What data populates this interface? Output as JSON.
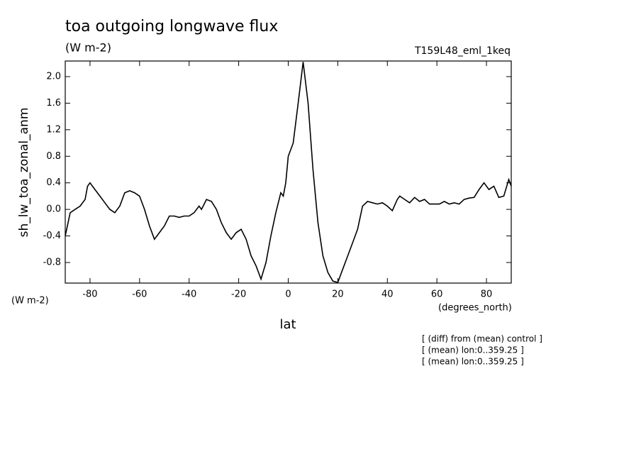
{
  "chart_data": {
    "type": "line",
    "title": "toa outgoing longwave flux",
    "subtitle": "(W m-2)",
    "dataset": "T159L48_eml_1keq",
    "ylabel": "sh_lw_toa_zonal_anm",
    "yunits": "(W m-2)",
    "xunits": "(degrees_north)",
    "xlabel": "lat",
    "notes": [
      "[ (diff) from (mean) control ]",
      "[ (mean) lon:0..359.25 ]",
      "[ (mean) lon:0..359.25 ]"
    ],
    "color": "#000000",
    "xlim": [
      -90,
      90
    ],
    "ylim": [
      -1.11,
      2.235
    ],
    "xticks": [
      -80,
      -60,
      -40,
      -20,
      0,
      20,
      40,
      60,
      80
    ],
    "yticks": [
      -0.8,
      -0.4,
      {
        "value": 0,
        "label": "0.0"
      },
      0.4,
      0.8,
      1.2,
      1.6,
      {
        "value": 2,
        "label": "2.0"
      }
    ],
    "x": [
      -90,
      -88,
      -86,
      -84,
      -82,
      -81,
      -80,
      -78,
      -76,
      -74,
      -72,
      -70,
      -68,
      -66,
      -64,
      -62,
      -60,
      -58,
      -56,
      -54,
      -52,
      -50,
      -48,
      -46,
      -44,
      -42,
      -40,
      -38,
      -36,
      -35,
      -33,
      -31,
      -29,
      -27,
      -25,
      -23,
      -21,
      -19,
      -17,
      -15,
      -13,
      -11,
      -9,
      -7,
      -5,
      -3,
      -2,
      -1,
      0,
      2,
      4,
      6,
      8,
      10,
      12,
      14,
      16,
      18,
      20,
      22,
      24,
      26,
      28,
      30,
      32,
      34,
      36,
      38,
      40,
      42,
      44,
      45,
      47,
      49,
      51,
      53,
      55,
      57,
      59,
      61,
      63,
      65,
      67,
      69,
      71,
      73,
      75,
      77,
      79,
      81,
      83,
      85,
      87,
      89,
      90
    ],
    "values": [
      -0.4,
      -0.05,
      0.0,
      0.05,
      0.15,
      0.35,
      0.4,
      0.3,
      0.2,
      0.1,
      0.0,
      -0.05,
      0.05,
      0.25,
      0.28,
      0.25,
      0.2,
      0.0,
      -0.25,
      -0.45,
      -0.35,
      -0.25,
      -0.1,
      -0.1,
      -0.12,
      -0.1,
      -0.1,
      -0.05,
      0.05,
      0.0,
      0.15,
      0.12,
      0.0,
      -0.2,
      -0.35,
      -0.45,
      -0.35,
      -0.3,
      -0.45,
      -0.7,
      -0.85,
      -1.05,
      -0.8,
      -0.4,
      -0.05,
      0.25,
      0.2,
      0.4,
      0.8,
      1.0,
      1.6,
      2.22,
      1.6,
      0.6,
      -0.2,
      -0.7,
      -0.95,
      -1.08,
      -1.1,
      -0.9,
      -0.7,
      -0.5,
      -0.3,
      0.05,
      0.12,
      0.1,
      0.08,
      0.1,
      0.05,
      -0.02,
      0.15,
      0.2,
      0.15,
      0.1,
      0.18,
      0.12,
      0.15,
      0.08,
      0.08,
      0.08,
      0.12,
      0.08,
      0.1,
      0.08,
      0.15,
      0.17,
      0.18,
      0.3,
      0.4,
      0.3,
      0.35,
      0.18,
      0.2,
      0.45,
      0.35
    ]
  }
}
